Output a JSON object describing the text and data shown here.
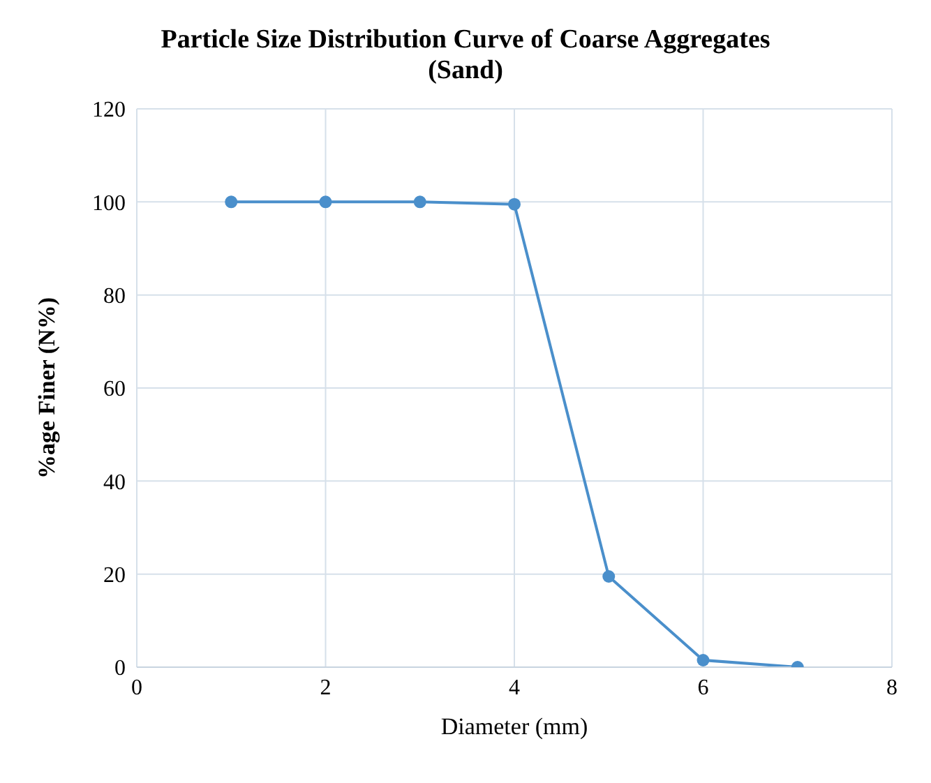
{
  "chart_data": {
    "type": "line",
    "title": "Particle Size Distribution Curve of Coarse Aggregates",
    "subtitle": "(Sand)",
    "xlabel": "Diameter (mm)",
    "ylabel": "%age Finer (N%)",
    "x": [
      1,
      2,
      3,
      4,
      5,
      6,
      7
    ],
    "series": [
      {
        "color": "#4a8fcb",
        "values": [
          100,
          100,
          100,
          99.5,
          19.5,
          1.5,
          0
        ]
      }
    ],
    "xlim": [
      0,
      8
    ],
    "xticks": [
      0,
      2,
      4,
      6,
      8
    ],
    "ylim": [
      0,
      120
    ],
    "yticks": [
      0,
      20,
      40,
      60,
      80,
      100,
      120
    ],
    "grid": true,
    "marker": "circle",
    "line_style": "solid"
  }
}
